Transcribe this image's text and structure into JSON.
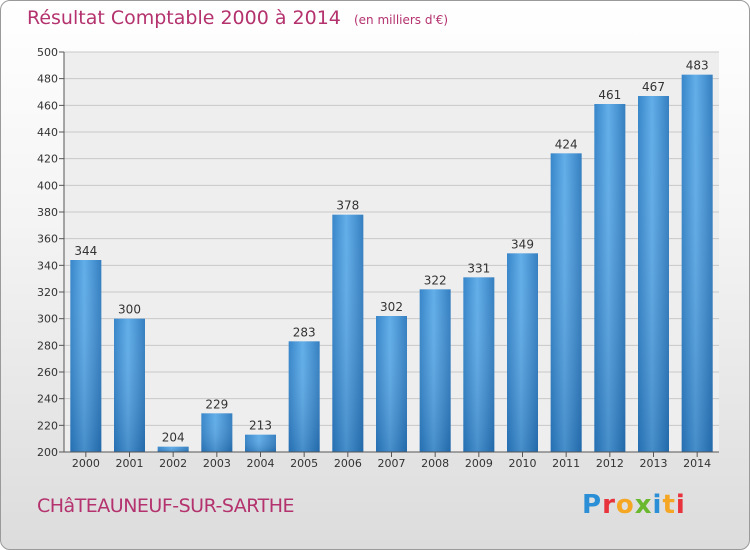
{
  "title": "Résultat Comptable 2000 à 2014",
  "subtitle": "(en milliers d'€)",
  "town": "CHâTEAUNEUF-SUR-SARTHE",
  "logo": {
    "text": "Proxiti",
    "letters": [
      {
        "ch": "P",
        "color": "#2a8fd6"
      },
      {
        "ch": "r",
        "color": "#e8323c"
      },
      {
        "ch": "o",
        "color": "#f5a623"
      },
      {
        "ch": "x",
        "color": "#6ab82e"
      },
      {
        "ch": "i",
        "color": "#2a8fd6"
      },
      {
        "ch": "t",
        "color": "#f5a623"
      },
      {
        "ch": "i",
        "color": "#e8323c"
      }
    ]
  },
  "chart_data": {
    "type": "bar",
    "categories": [
      "2000",
      "2001",
      "2002",
      "2003",
      "2004",
      "2005",
      "2006",
      "2007",
      "2008",
      "2009",
      "2010",
      "2011",
      "2012",
      "2013",
      "2014"
    ],
    "values": [
      344,
      300,
      204,
      229,
      213,
      283,
      378,
      302,
      322,
      331,
      349,
      424,
      461,
      467,
      483
    ],
    "ylim": [
      200,
      500
    ],
    "yticks": [
      200,
      220,
      240,
      260,
      280,
      300,
      320,
      340,
      360,
      380,
      400,
      420,
      440,
      460,
      480,
      500
    ],
    "grid": true,
    "bar_color": "#3a8fd8",
    "title": "Résultat Comptable 2000 à 2014",
    "xlabel": "",
    "ylabel": ""
  }
}
